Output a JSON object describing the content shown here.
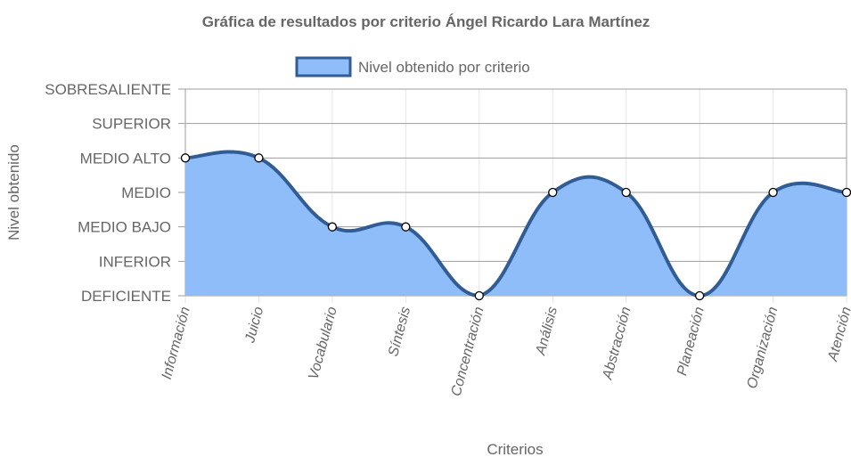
{
  "chart_data": {
    "type": "area",
    "title": "Gráfica de resultados por criterio Ángel Ricardo Lara Martínez",
    "xlabel": "Criterios",
    "ylabel": "Nivel obtenido",
    "categories": [
      "Información",
      "Juicio",
      "Vocabulario",
      "Síntesis",
      "Concentración",
      "Análisis",
      "Abstracción",
      "Planeación",
      "Organización",
      "Atención"
    ],
    "y_levels": [
      "DEFICIENTE",
      "INFERIOR",
      "MEDIO BAJO",
      "MEDIO",
      "MEDIO ALTO",
      "SUPERIOR",
      "SOBRESALIENTE"
    ],
    "series": [
      {
        "name": "Nivel obtenido por criterio",
        "values": [
          4,
          4,
          2,
          2,
          0,
          3,
          3,
          0,
          3,
          3
        ]
      }
    ],
    "ylim": [
      0,
      6
    ],
    "grid": true,
    "legend": "top-center",
    "colors": {
      "fill": "#8fbdf9",
      "line": "#325d94",
      "grid": "#e6e6e6",
      "grid_major": "#9e9e9e",
      "text": "#666666"
    }
  }
}
